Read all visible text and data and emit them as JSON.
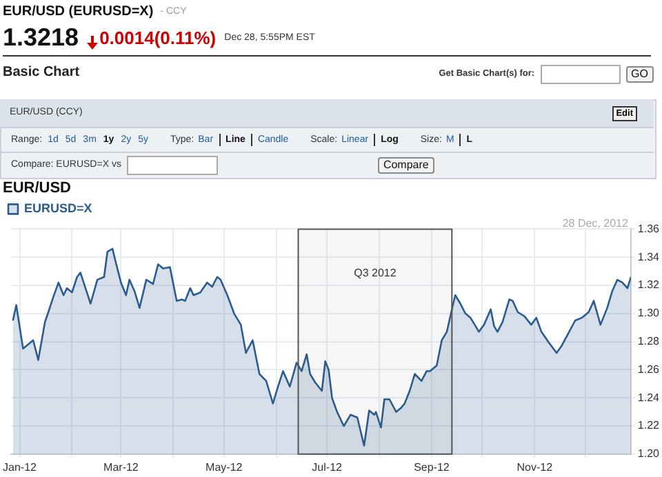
{
  "chart_data": {
    "type": "area",
    "title": "EUR/USD",
    "subtitle": "28 Dec, 2012",
    "annotations": [
      "EUR/USD (EURUSD=X)",
      "- CCY",
      "1.3218",
      "0.0014(0.11%)",
      "Dec 28, 5:55PM EST",
      "Basic Chart",
      "Get Basic Chart(s) for:",
      "GO",
      "EUR/USD (CCY)",
      "Edit",
      "Range:",
      "1d",
      "5d",
      "3m",
      "1y",
      "2y",
      "5y",
      "Type:",
      "Bar",
      "Line",
      "Candle",
      "Scale:",
      "Linear",
      "Log",
      "Size:",
      "M",
      "L",
      "Compare: EURUSD=X vs",
      "Compare"
    ],
    "x": [
      "2011-12-28",
      "2011-12-30",
      "2012-01-03",
      "2012-01-06",
      "2012-01-09",
      "2012-01-12",
      "2012-01-16",
      "2012-01-18",
      "2012-01-21",
      "2012-01-24",
      "2012-01-27",
      "2012-01-29",
      "2012-02-01",
      "2012-02-04",
      "2012-02-06",
      "2012-02-09",
      "2012-02-12",
      "2012-02-16",
      "2012-02-20",
      "2012-02-22",
      "2012-02-25",
      "2012-02-27",
      "2012-03-01",
      "2012-03-04",
      "2012-03-06",
      "2012-03-09",
      "2012-03-12",
      "2012-03-16",
      "2012-03-20",
      "2012-03-23",
      "2012-03-26",
      "2012-03-30",
      "2012-04-03",
      "2012-04-06",
      "2012-04-08",
      "2012-04-11",
      "2012-04-13",
      "2012-04-17",
      "2012-04-21",
      "2012-04-24",
      "2012-04-27",
      "2012-04-29",
      "2012-05-03",
      "2012-05-07",
      "2012-05-11",
      "2012-05-14",
      "2012-05-18",
      "2012-05-22",
      "2012-05-26",
      "2012-05-30",
      "2012-06-02",
      "2012-06-05",
      "2012-06-09",
      "2012-06-13",
      "2012-06-16",
      "2012-06-19",
      "2012-06-21",
      "2012-06-24",
      "2012-06-28",
      "2012-06-30",
      "2012-07-02",
      "2012-07-04",
      "2012-07-07",
      "2012-07-11",
      "2012-07-15",
      "2012-07-19",
      "2012-07-22",
      "2012-07-23",
      "2012-07-26",
      "2012-07-29",
      "2012-07-30",
      "2012-08-02",
      "2012-08-04",
      "2012-08-07",
      "2012-08-11",
      "2012-08-14",
      "2012-08-16",
      "2012-08-19",
      "2012-08-22",
      "2012-08-26",
      "2012-08-29",
      "2012-08-31",
      "2012-09-04",
      "2012-09-07",
      "2012-09-10",
      "2012-09-13",
      "2012-09-15",
      "2012-09-18",
      "2012-09-21",
      "2012-09-24",
      "2012-09-27",
      "2012-09-29",
      "2012-10-02",
      "2012-10-06",
      "2012-10-08",
      "2012-10-10",
      "2012-10-13",
      "2012-10-17",
      "2012-10-19",
      "2012-10-22",
      "2012-10-26",
      "2012-10-30",
      "2012-11-02",
      "2012-11-05",
      "2012-11-09",
      "2012-11-14",
      "2012-11-17",
      "2012-11-21",
      "2012-11-25",
      "2012-11-29",
      "2012-12-03",
      "2012-12-06",
      "2012-12-10",
      "2012-12-14",
      "2012-12-17",
      "2012-12-20",
      "2012-12-23",
      "2012-12-26",
      "2012-12-28"
    ],
    "series": [
      {
        "name": "EURUSD=X",
        "color": "#2b5c8f",
        "values": [
          1.295,
          1.306,
          1.275,
          1.278,
          1.281,
          1.267,
          1.294,
          1.301,
          1.312,
          1.322,
          1.313,
          1.318,
          1.315,
          1.326,
          1.329,
          1.318,
          1.307,
          1.324,
          1.326,
          1.344,
          1.346,
          1.336,
          1.322,
          1.313,
          1.324,
          1.316,
          1.304,
          1.324,
          1.321,
          1.335,
          1.332,
          1.333,
          1.309,
          1.31,
          1.309,
          1.318,
          1.313,
          1.315,
          1.322,
          1.319,
          1.326,
          1.324,
          1.313,
          1.3,
          1.292,
          1.272,
          1.281,
          1.257,
          1.252,
          1.236,
          1.248,
          1.259,
          1.248,
          1.265,
          1.259,
          1.271,
          1.257,
          1.251,
          1.245,
          1.266,
          1.26,
          1.24,
          1.23,
          1.22,
          1.228,
          1.226,
          1.211,
          1.206,
          1.231,
          1.228,
          1.23,
          1.219,
          1.239,
          1.239,
          1.23,
          1.233,
          1.236,
          1.245,
          1.257,
          1.252,
          1.259,
          1.259,
          1.263,
          1.281,
          1.287,
          1.303,
          1.313,
          1.307,
          1.3,
          1.297,
          1.291,
          1.287,
          1.292,
          1.303,
          1.291,
          1.287,
          1.294,
          1.31,
          1.309,
          1.301,
          1.298,
          1.292,
          1.297,
          1.287,
          1.28,
          1.272,
          1.277,
          1.286,
          1.295,
          1.297,
          1.301,
          1.309,
          1.292,
          1.304,
          1.316,
          1.324,
          1.322,
          1.318,
          1.326
        ]
      }
    ],
    "xlim": [
      "2011-12-27",
      "2012-12-28"
    ],
    "xticks": [
      {
        "value": "2012-01-01",
        "label": "Jan-12"
      },
      {
        "value": "2012-02-01",
        "label": null
      },
      {
        "value": "2012-03-01",
        "label": "Mar-12"
      },
      {
        "value": "2012-04-01",
        "label": null
      },
      {
        "value": "2012-05-01",
        "label": "May-12"
      },
      {
        "value": "2012-06-01",
        "label": null
      },
      {
        "value": "2012-07-01",
        "label": "Jul-12"
      },
      {
        "value": "2012-08-01",
        "label": null
      },
      {
        "value": "2012-09-01",
        "label": "Sep-12"
      },
      {
        "value": "2012-10-01",
        "label": null
      },
      {
        "value": "2012-11-01",
        "label": "Nov-12"
      },
      {
        "value": "2012-12-01",
        "label": null
      }
    ],
    "ylim": [
      1.2,
      1.36
    ],
    "yticks": [
      {
        "value": 1.2,
        "label": "1.20"
      },
      {
        "value": 1.22,
        "label": "1.22"
      },
      {
        "value": 1.24,
        "label": "1.24"
      },
      {
        "value": 1.26,
        "label": "1.26"
      },
      {
        "value": 1.28,
        "label": "1.28"
      },
      {
        "value": 1.3,
        "label": "1.30"
      },
      {
        "value": 1.32,
        "label": "1.32"
      },
      {
        "value": 1.34,
        "label": "1.34"
      },
      {
        "value": 1.36,
        "label": "1.36"
      }
    ],
    "bands": [
      {
        "axis": "x",
        "from": "2012-06-14",
        "to": "2012-09-13",
        "label": "Q3 2012",
        "color": "#555555"
      }
    ],
    "grid": true,
    "legend": "top left"
  }
}
